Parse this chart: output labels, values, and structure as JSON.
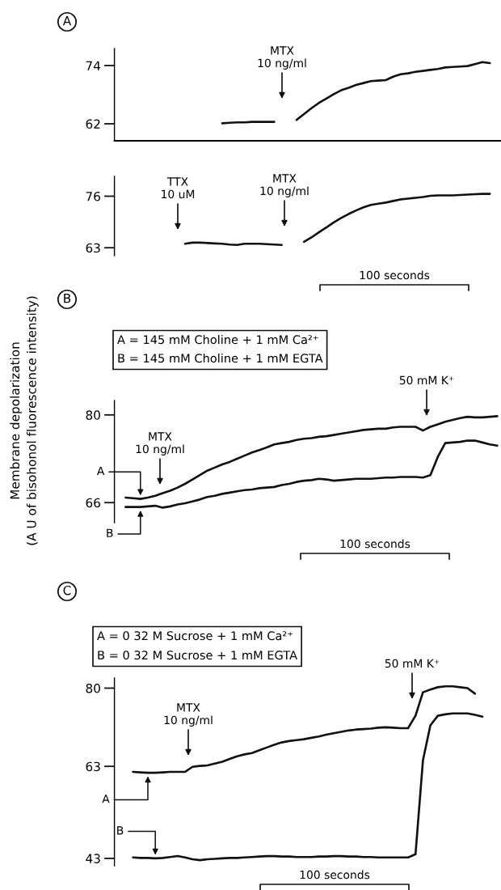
{
  "chart_data": [
    {
      "type": "line",
      "title": "A",
      "categories": [
        null,
        null,
        null,
        null,
        null,
        null,
        null,
        null,
        null,
        null,
        null,
        null,
        null,
        null,
        null,
        null,
        null,
        null,
        null,
        null,
        null,
        null,
        null,
        null,
        null,
        null,
        null,
        null,
        null,
        null,
        null,
        null,
        null,
        null,
        null,
        null,
        null,
        null,
        null,
        null,
        null,
        null,
        null,
        null,
        null,
        null,
        null,
        null,
        null,
        null,
        null,
        null
      ],
      "ylim": [
        58.5,
        77.5
      ],
      "yticks": [
        62,
        74
      ],
      "tick_labels": "y",
      "series": [
        {
          "color": "#111111",
          "values": [
            null,
            null,
            null,
            null,
            null,
            null,
            null,
            null,
            null,
            null,
            null,
            null,
            null,
            null,
            62.1,
            62.2,
            62.3,
            62.3,
            62.4,
            62.4,
            62.4,
            62.4,
            null,
            null,
            null,
            null,
            null,
            null,
            null,
            null,
            null,
            null,
            null,
            null,
            null,
            null,
            null,
            null,
            null,
            null,
            null,
            null,
            null,
            null,
            null,
            null,
            null,
            null,
            null,
            null,
            null,
            null
          ]
        },
        {
          "color": "#111111",
          "values": [
            null,
            null,
            null,
            null,
            null,
            null,
            null,
            null,
            null,
            null,
            null,
            null,
            null,
            null,
            null,
            null,
            null,
            null,
            null,
            null,
            null,
            null,
            null,
            null,
            62.8,
            64.0,
            65.2,
            66.3,
            67.2,
            68.1,
            68.9,
            69.4,
            70.0,
            70.4,
            70.8,
            70.9,
            71.0,
            71.7,
            72.2,
            72.4,
            72.7,
            72.9,
            73.1,
            73.3,
            73.6,
            73.7,
            73.8,
            73.9,
            74.3,
            74.7,
            74.5,
            null
          ]
        }
      ],
      "annotations": [
        "MTX\n10 ng/ml"
      ]
    },
    {
      "type": "line",
      "categories": [
        null,
        null,
        null,
        null,
        null,
        null,
        null,
        null,
        null,
        null,
        null,
        null,
        null,
        null,
        null,
        null,
        null,
        null,
        null,
        null,
        null,
        null,
        null,
        null,
        null,
        null,
        null,
        null,
        null,
        null,
        null,
        null,
        null,
        null,
        null,
        null,
        null,
        null,
        null,
        null,
        null,
        null,
        null,
        null,
        null,
        null,
        null,
        null,
        null,
        null,
        null,
        null
      ],
      "ylim": [
        61,
        81
      ],
      "yticks": [
        63,
        76
      ],
      "tick_labels": "y",
      "series": [
        {
          "color": "#111111",
          "values": [
            null,
            null,
            null,
            null,
            null,
            null,
            null,
            null,
            null,
            64.0,
            64.3,
            64.3,
            64.2,
            64.1,
            64.0,
            63.8,
            63.7,
            64.0,
            64.0,
            64.0,
            63.9,
            63.8,
            63.7,
            null,
            null,
            null,
            null,
            null,
            null,
            null,
            null,
            null,
            null,
            null,
            null,
            null,
            null,
            null,
            null,
            null,
            null,
            null,
            null,
            null,
            null,
            null,
            null,
            null,
            null,
            null,
            null,
            null
          ]
        },
        {
          "color": "#111111",
          "values": [
            null,
            null,
            null,
            null,
            null,
            null,
            null,
            null,
            null,
            null,
            null,
            null,
            null,
            null,
            null,
            null,
            null,
            null,
            null,
            null,
            null,
            null,
            null,
            null,
            null,
            64.5,
            65.6,
            66.9,
            68.1,
            69.4,
            70.5,
            71.5,
            72.4,
            73.2,
            73.8,
            74.1,
            74.4,
            74.8,
            75.2,
            75.4,
            75.6,
            75.8,
            76.1,
            76.2,
            76.2,
            76.2,
            76.3,
            76.4,
            76.5,
            76.6,
            76.6,
            null
          ]
        }
      ],
      "annotations": [
        "TTX\n10 uM",
        "MTX\n10 ng/ml",
        "100 seconds"
      ]
    },
    {
      "type": "line",
      "title": "B",
      "ylabel": "Membrane depolarization\n(A U of bisohonol fluorescence intensity)",
      "categories": [
        null,
        null,
        null,
        null,
        null,
        null,
        null,
        null,
        null,
        null,
        null,
        null,
        null,
        null,
        null,
        null,
        null,
        null,
        null,
        null,
        null,
        null,
        null,
        null,
        null,
        null,
        null,
        null,
        null,
        null,
        null,
        null,
        null,
        null,
        null,
        null,
        null,
        null,
        null,
        null,
        null,
        null,
        null,
        null,
        null,
        null,
        null,
        null,
        null,
        null,
        null,
        null
      ],
      "ylim": [
        62.8,
        82.3
      ],
      "yticks": [
        66,
        80
      ],
      "tick_labels": "y",
      "series": [
        {
          "name": "A",
          "color": "#111111",
          "values": [
            null,
            66.8,
            66.7,
            66.6,
            66.8,
            67.1,
            67.5,
            67.9,
            68.4,
            69.0,
            69.7,
            70.4,
            71.1,
            71.6,
            72.1,
            72.5,
            73.0,
            73.5,
            74.0,
            74.4,
            74.8,
            75.3,
            75.5,
            75.7,
            76.0,
            76.2,
            76.3,
            76.5,
            76.6,
            76.8,
            77.0,
            77.2,
            77.4,
            77.6,
            77.7,
            77.8,
            77.8,
            78.0,
            78.1,
            78.1,
            78.1,
            77.5,
            78.1,
            78.5,
            78.9,
            79.2,
            79.5,
            79.7,
            79.6,
            79.6,
            79.7,
            79.8
          ]
        },
        {
          "name": "B",
          "color": "#111111",
          "values": [
            null,
            65.3,
            65.3,
            65.3,
            65.4,
            65.5,
            65.2,
            65.4,
            65.7,
            65.9,
            66.2,
            66.5,
            66.9,
            67.1,
            67.4,
            67.6,
            67.8,
            68.0,
            68.1,
            68.3,
            68.4,
            68.5,
            68.8,
            69.0,
            69.3,
            69.5,
            69.6,
            69.8,
            69.7,
            69.5,
            69.6,
            69.7,
            69.8,
            69.8,
            69.8,
            69.9,
            70.0,
            70.0,
            70.1,
            70.1,
            70.1,
            70.0,
            70.4,
            73.3,
            75.5,
            75.6,
            75.7,
            75.9,
            75.9,
            75.6,
            75.3,
            75.1
          ]
        }
      ],
      "annotations": [
        "A = 145 mM Choline + 1 mM Ca²⁺",
        "B = 145 mM Choline + 1 mM EGTA",
        "MTX\n10 ng/ml",
        "50 mM K⁺",
        "100 seconds"
      ]
    },
    {
      "type": "line",
      "title": "C",
      "categories": [
        null,
        null,
        null,
        null,
        null,
        null,
        null,
        null,
        null,
        null,
        null,
        null,
        null,
        null,
        null,
        null,
        null,
        null,
        null,
        null,
        null,
        null,
        null,
        null,
        null,
        null,
        null,
        null,
        null,
        null,
        null,
        null,
        null,
        null,
        null,
        null,
        null,
        null,
        null,
        null,
        null,
        null,
        null,
        null,
        null,
        null,
        null,
        null,
        null,
        null,
        null,
        null
      ],
      "ylim": [
        41.4,
        82.2
      ],
      "yticks": [
        43,
        63,
        80
      ],
      "tick_labels": "y",
      "series": [
        {
          "name": "A",
          "color": "#111111",
          "values": [
            null,
            null,
            61.8,
            61.7,
            61.6,
            61.6,
            61.7,
            61.8,
            61.8,
            61.8,
            62.9,
            63.1,
            63.2,
            63.6,
            64.0,
            64.6,
            65.2,
            65.6,
            65.9,
            66.5,
            67.1,
            67.7,
            68.2,
            68.5,
            68.7,
            68.9,
            69.2,
            69.5,
            69.9,
            70.2,
            70.5,
            70.8,
            71.0,
            71.1,
            71.2,
            71.4,
            71.5,
            71.4,
            71.3,
            71.3,
            74.0,
            79.1,
            79.7,
            80.2,
            80.4,
            80.4,
            80.2,
            80.0,
            78.8,
            null,
            null,
            null
          ]
        },
        {
          "name": "B",
          "color": "#111111",
          "values": [
            null,
            null,
            43.2,
            43.1,
            43.1,
            43.0,
            43.1,
            43.3,
            43.5,
            43.2,
            42.8,
            42.6,
            42.8,
            42.9,
            43.0,
            43.1,
            43.1,
            43.2,
            43.3,
            43.4,
            43.5,
            43.5,
            43.4,
            43.4,
            43.3,
            43.3,
            43.3,
            43.4,
            43.4,
            43.5,
            43.5,
            43.4,
            43.4,
            43.3,
            43.3,
            43.2,
            43.2,
            43.2,
            43.2,
            43.2,
            43.9,
            64.3,
            71.9,
            74.0,
            74.3,
            74.5,
            74.5,
            74.5,
            74.2,
            73.8,
            null,
            null
          ]
        }
      ],
      "annotations": [
        "A = 0 32 M Sucrose + 1 mM Ca²⁺",
        "B = 0 32 M Sucrose + 1 mM EGTA",
        "MTX\n10 ng/ml",
        "50 mM K⁺",
        "100 seconds"
      ]
    }
  ]
}
